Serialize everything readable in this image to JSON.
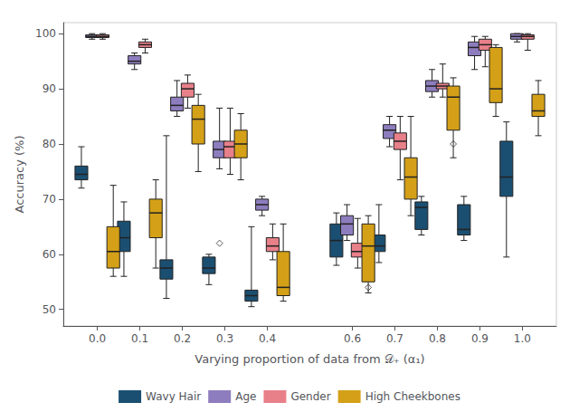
{
  "chart_data": {
    "type": "boxplot",
    "xlabel": "Varying proportion of data from 𝒟₊ (α₁)",
    "ylabel": "Accuracy (%)",
    "x": [
      0.0,
      0.1,
      0.2,
      0.3,
      0.4,
      0.6,
      0.7,
      0.8,
      0.9,
      1.0
    ],
    "xlim": [
      -0.08,
      1.08
    ],
    "xticks": [
      {
        "value": 0.0,
        "label": "0.0"
      },
      0.1,
      0.2,
      0.3,
      0.4,
      0.6,
      0.7,
      0.8,
      0.9,
      {
        "value": 1.0,
        "label": "1.0"
      }
    ],
    "ylim": [
      47,
      102
    ],
    "yticks": [
      50,
      60,
      70,
      80,
      90,
      100
    ],
    "grid": false,
    "legend": "bottom",
    "series": [
      {
        "name": "Wavy Hair",
        "color": "#1b4f72",
        "values": [
          [
            72.0,
            73.5,
            74.5,
            76.0,
            79.5
          ],
          [
            56.0,
            60.5,
            63.0,
            66.0,
            69.5
          ],
          [
            52.0,
            55.5,
            57.5,
            59.0,
            81.5
          ],
          [
            54.5,
            56.5,
            57.5,
            59.5,
            60.0
          ],
          [
            50.5,
            51.5,
            52.5,
            53.5,
            65.0
          ],
          [
            58.0,
            59.5,
            62.5,
            65.5,
            67.5
          ],
          [
            58.5,
            60.5,
            61.5,
            63.5,
            69.0
          ],
          [
            63.5,
            64.5,
            68.5,
            69.5,
            70.5
          ],
          [
            62.5,
            63.5,
            64.5,
            69.0,
            70.5
          ],
          [
            59.5,
            70.5,
            74.0,
            80.5,
            84.0
          ]
        ],
        "outliers": [
          [],
          [],
          [],
          [],
          [],
          [],
          [],
          [],
          [],
          []
        ]
      },
      {
        "name": "Age",
        "color": "#8e7dbe",
        "values": [
          [
            99.0,
            99.3,
            99.5,
            99.8,
            100.0
          ],
          [
            93.5,
            94.5,
            95.0,
            96.0,
            96.5
          ],
          [
            85.0,
            86.0,
            87.0,
            88.5,
            91.5
          ],
          [
            75.5,
            77.5,
            79.0,
            80.5,
            86.5
          ],
          [
            67.0,
            68.0,
            69.0,
            70.0,
            70.5
          ],
          [
            62.5,
            63.5,
            65.5,
            67.0,
            69.0
          ],
          [
            79.5,
            81.0,
            82.5,
            83.5,
            85.0
          ],
          [
            88.5,
            89.5,
            90.5,
            91.5,
            93.5
          ],
          [
            93.5,
            96.0,
            97.5,
            98.5,
            99.5
          ],
          [
            98.5,
            99.0,
            99.5,
            100.0,
            100.0
          ]
        ],
        "outliers": [
          [],
          [],
          [],
          [
            62.0
          ],
          [],
          [],
          [],
          [],
          [],
          []
        ]
      },
      {
        "name": "Gender",
        "color": "#e8808a",
        "values": [
          [
            99.0,
            99.3,
            99.5,
            99.8,
            100.0
          ],
          [
            96.5,
            97.5,
            98.0,
            98.5,
            99.0
          ],
          [
            86.5,
            88.5,
            90.0,
            91.0,
            92.5
          ],
          [
            74.5,
            77.5,
            79.5,
            80.5,
            86.5
          ],
          [
            59.0,
            60.5,
            61.5,
            63.0,
            65.5
          ],
          [
            57.5,
            59.5,
            60.5,
            62.0,
            66.5
          ],
          [
            73.5,
            79.0,
            80.5,
            82.0,
            85.0
          ],
          [
            88.5,
            90.0,
            90.5,
            91.0,
            94.5
          ],
          [
            94.0,
            97.0,
            98.0,
            99.0,
            99.5
          ],
          [
            97.0,
            99.0,
            99.5,
            99.8,
            100.0
          ]
        ],
        "outliers": [
          [],
          [],
          [],
          [],
          [],
          [],
          [],
          [],
          [],
          []
        ]
      },
      {
        "name": "High Cheekbones",
        "color": "#d4a017",
        "values": [
          [
            56.0,
            57.5,
            60.5,
            65.0,
            72.5
          ],
          [
            57.5,
            63.0,
            67.5,
            70.0,
            73.5
          ],
          [
            75.0,
            80.0,
            84.5,
            87.0,
            89.0
          ],
          [
            73.5,
            77.5,
            80.0,
            82.5,
            85.5
          ],
          [
            51.5,
            52.5,
            54.0,
            60.5,
            65.5
          ],
          [
            53.0,
            55.0,
            61.5,
            65.5,
            67.0
          ],
          [
            67.0,
            70.0,
            74.0,
            77.5,
            85.0
          ],
          [
            77.5,
            82.5,
            88.5,
            90.5,
            92.0
          ],
          [
            85.0,
            87.5,
            90.0,
            97.5,
            98.0
          ],
          [
            81.5,
            85.0,
            86.0,
            89.0,
            91.5
          ]
        ],
        "outliers": [
          [],
          [],
          [],
          [],
          [],
          [
            54.0
          ],
          [],
          [
            80.0
          ],
          [],
          []
        ]
      }
    ]
  }
}
